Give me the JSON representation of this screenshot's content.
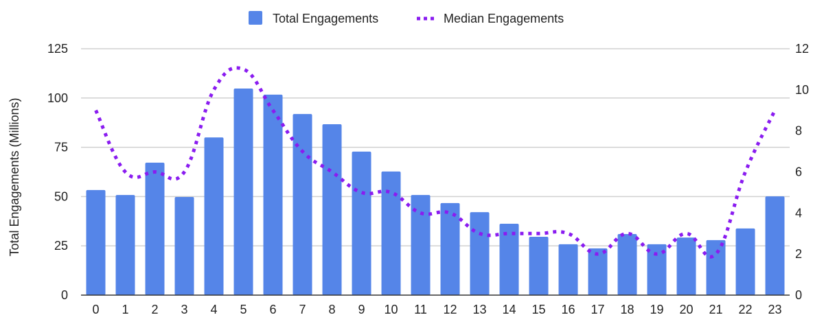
{
  "chart_data": {
    "type": "bar+line",
    "categories": [
      "0",
      "1",
      "2",
      "3",
      "4",
      "5",
      "6",
      "7",
      "8",
      "9",
      "10",
      "11",
      "12",
      "13",
      "14",
      "15",
      "16",
      "17",
      "18",
      "19",
      "20",
      "21",
      "22",
      "23"
    ],
    "series": [
      {
        "name": "Total Engagements",
        "type": "bar",
        "axis": "left",
        "color": "#5585e8",
        "values": [
          53.3,
          50.8,
          67.2,
          49.8,
          80,
          104.8,
          101.7,
          91.9,
          86.7,
          72.8,
          62.7,
          50.8,
          46.7,
          42.1,
          36.2,
          29.6,
          25.8,
          23.7,
          31,
          25.8,
          29.2,
          27.9,
          33.8,
          50.1
        ]
      },
      {
        "name": "Median Engagements",
        "type": "line",
        "style": "dotted",
        "axis": "right",
        "color": "#8a1cf0",
        "values": [
          9,
          6,
          6,
          6,
          10,
          11,
          9,
          7,
          6,
          5,
          5,
          4,
          4,
          3,
          3,
          3,
          3,
          2,
          3,
          2,
          3,
          2,
          6,
          9
        ]
      }
    ],
    "ylabel": "Total Engagements (Millions)",
    "ylim": [
      0,
      125
    ],
    "yticks": [
      "0",
      "25",
      "50",
      "75",
      "100",
      "125"
    ],
    "y2lim": [
      0,
      12
    ],
    "y2ticks": [
      "0",
      "2",
      "4",
      "6",
      "8",
      "10",
      "12"
    ],
    "grid": true,
    "legend": "top"
  }
}
